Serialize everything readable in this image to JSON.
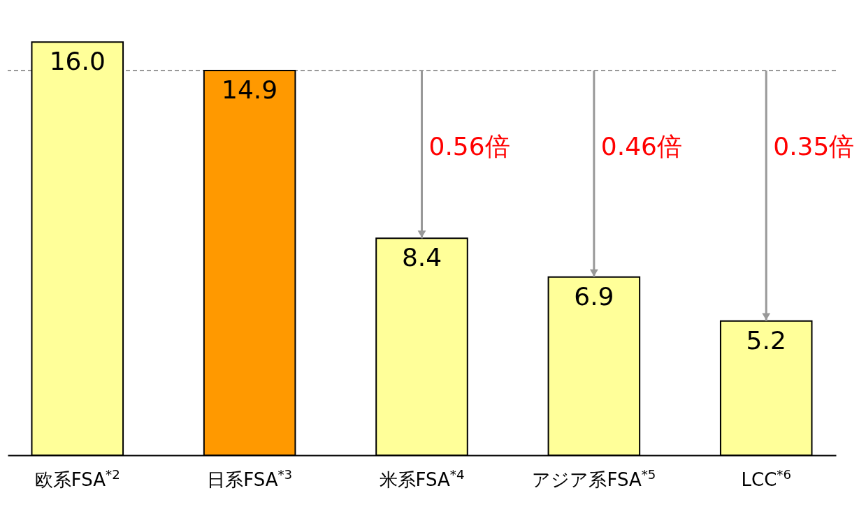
{
  "chart_data": {
    "type": "bar",
    "categories": [
      "欧系FSA$^{*2}$",
      "日系FSA$^{*3}$",
      "米系FSA$^{*4}$",
      "アジア系FSA$^{*5}$",
      "LCC$^{*6}$"
    ],
    "values": [
      16.0,
      14.9,
      8.4,
      6.9,
      5.2
    ],
    "value_labels": [
      "16.0",
      "14.9",
      "8.4",
      "6.9",
      "5.2"
    ],
    "colors": [
      "#ffff99",
      "#ff9900",
      "#ffff99",
      "#ffff99",
      "#ffff99"
    ],
    "ref_lines": [
      {
        "axis": "y",
        "value": 14.9,
        "color": "#999999",
        "line_style": "dashed"
      }
    ],
    "annotations": [
      "0.56倍",
      "0.46倍",
      "0.35倍"
    ]
  }
}
